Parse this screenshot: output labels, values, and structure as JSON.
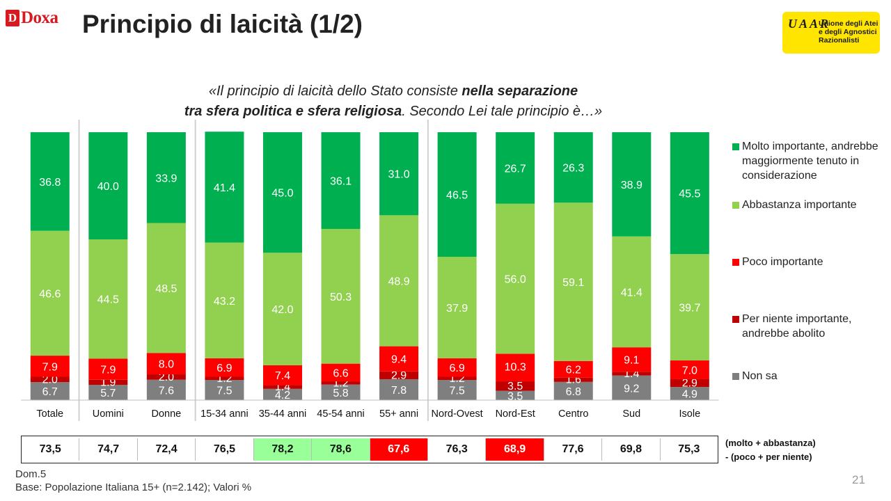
{
  "header": {
    "logo_text": "Doxa",
    "logo_mark": "D",
    "title": "Principio di laicità (1/2)",
    "uaar_lines": [
      "Unione degli Atei",
      "e degli Agnostici",
      "Razionalisti"
    ],
    "uaar_mono": "UAAR"
  },
  "question": {
    "open": "«Il principio di laicità dello Stato consiste ",
    "bold1": "nella separazione",
    "bold2": "tra sfera politica e sfera religiosa",
    "rest": ". Secondo Lei tale principio è…»"
  },
  "chart_data": {
    "type": "bar",
    "stacked": true,
    "ylim": [
      0,
      100
    ],
    "grid": false,
    "legend_position": "right",
    "categories": [
      "Totale",
      "Uomini",
      "Donne",
      "15-34 anni",
      "35-44 anni",
      "45-54 anni",
      "55+ anni",
      "Nord-Ovest",
      "Nord-Est",
      "Centro",
      "Sud",
      "Isole"
    ],
    "series": [
      {
        "name": "Non sa",
        "color": "#7f7f7f",
        "values": [
          6.7,
          5.7,
          7.6,
          7.5,
          4.2,
          5.8,
          7.8,
          7.5,
          3.5,
          6.8,
          9.2,
          4.9
        ]
      },
      {
        "name": "Per niente importante, andrebbe abolito",
        "color": "#c00000",
        "values": [
          2.0,
          1.9,
          2.0,
          1.2,
          1.4,
          1.2,
          2.9,
          1.2,
          3.5,
          1.6,
          1.4,
          2.9
        ]
      },
      {
        "name": "Poco importante",
        "color": "#ff0000",
        "values": [
          7.9,
          7.9,
          8.0,
          6.9,
          7.4,
          6.6,
          9.4,
          6.9,
          10.3,
          6.2,
          9.1,
          7.0
        ]
      },
      {
        "name": "Abbastanza importante",
        "color": "#92d050",
        "values": [
          46.6,
          44.5,
          48.5,
          43.2,
          42.0,
          50.3,
          48.9,
          37.9,
          56.0,
          59.1,
          41.4,
          39.7
        ]
      },
      {
        "name": "Molto importante, andrebbe maggiormente tenuto in considerazione",
        "color": "#00b050",
        "values": [
          36.8,
          40.0,
          33.9,
          41.4,
          45.0,
          36.1,
          31.0,
          46.5,
          26.7,
          26.3,
          38.9,
          45.5
        ]
      }
    ],
    "legend_order": [
      "Molto importante, andrebbe maggiormente tenuto in considerazione",
      "Abbastanza importante",
      "Poco importante",
      "Per niente importante, andrebbe abolito",
      "Non sa"
    ]
  },
  "summary": {
    "values": [
      "73,5",
      "74,7",
      "72,4",
      "76,5",
      "78,2",
      "78,6",
      "67,6",
      "76,3",
      "68,9",
      "77,6",
      "69,8",
      "75,3"
    ],
    "highlight": [
      "none",
      "none",
      "none",
      "none",
      "green",
      "green",
      "red",
      "none",
      "red",
      "none",
      "none",
      "none"
    ],
    "colors": {
      "green": "#99ff99",
      "red": "#ff0000"
    },
    "note_line1": "(molto + abbastanza)",
    "note_line2": "- (poco + per niente)"
  },
  "footnote": {
    "line1": "Dom.5",
    "line2": "Base: Popolazione Italiana 15+ (n=2.142); Valori %"
  },
  "page_number": "21"
}
